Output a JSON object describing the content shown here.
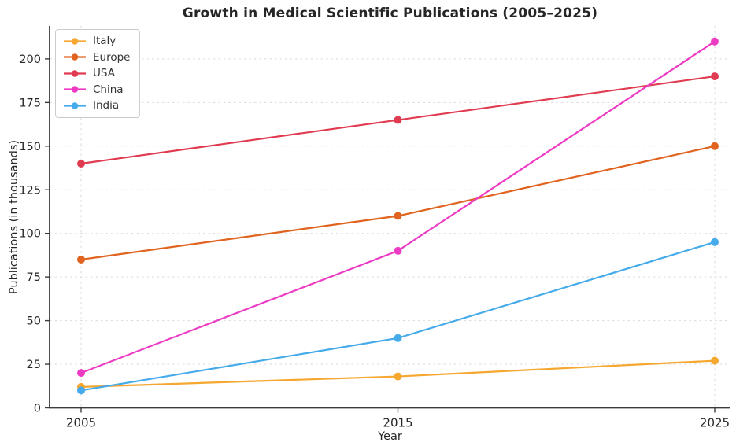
{
  "chart_data": {
    "type": "line",
    "title": "Growth in Medical Scientific Publications (2005–2025)",
    "xlabel": "Year",
    "ylabel": "Publications (in thousands)",
    "categories": [
      2005,
      2015,
      2025
    ],
    "series": [
      {
        "name": "Italy",
        "values": [
          12,
          18,
          27
        ],
        "color": "#F5A72F"
      },
      {
        "name": "Europe",
        "values": [
          85,
          110,
          150
        ],
        "color": "#E0641F"
      },
      {
        "name": "USA",
        "values": [
          140,
          165,
          190
        ],
        "color": "#E03B50"
      },
      {
        "name": "China",
        "values": [
          20,
          90,
          210
        ],
        "color": "#ED3CC3"
      },
      {
        "name": "India",
        "values": [
          10,
          40,
          95
        ],
        "color": "#45ABEA"
      }
    ],
    "yticks": [
      0,
      25,
      50,
      75,
      100,
      125,
      150,
      175,
      200
    ],
    "xtick_labels": [
      "2005",
      "2015",
      "2025"
    ],
    "ylim": [
      0,
      219
    ],
    "grid": "dashed",
    "legend_position": "upper-left",
    "colors": {
      "grid": "#d9d9d9",
      "spine": "#3b3b3b",
      "text": "#262626"
    }
  }
}
